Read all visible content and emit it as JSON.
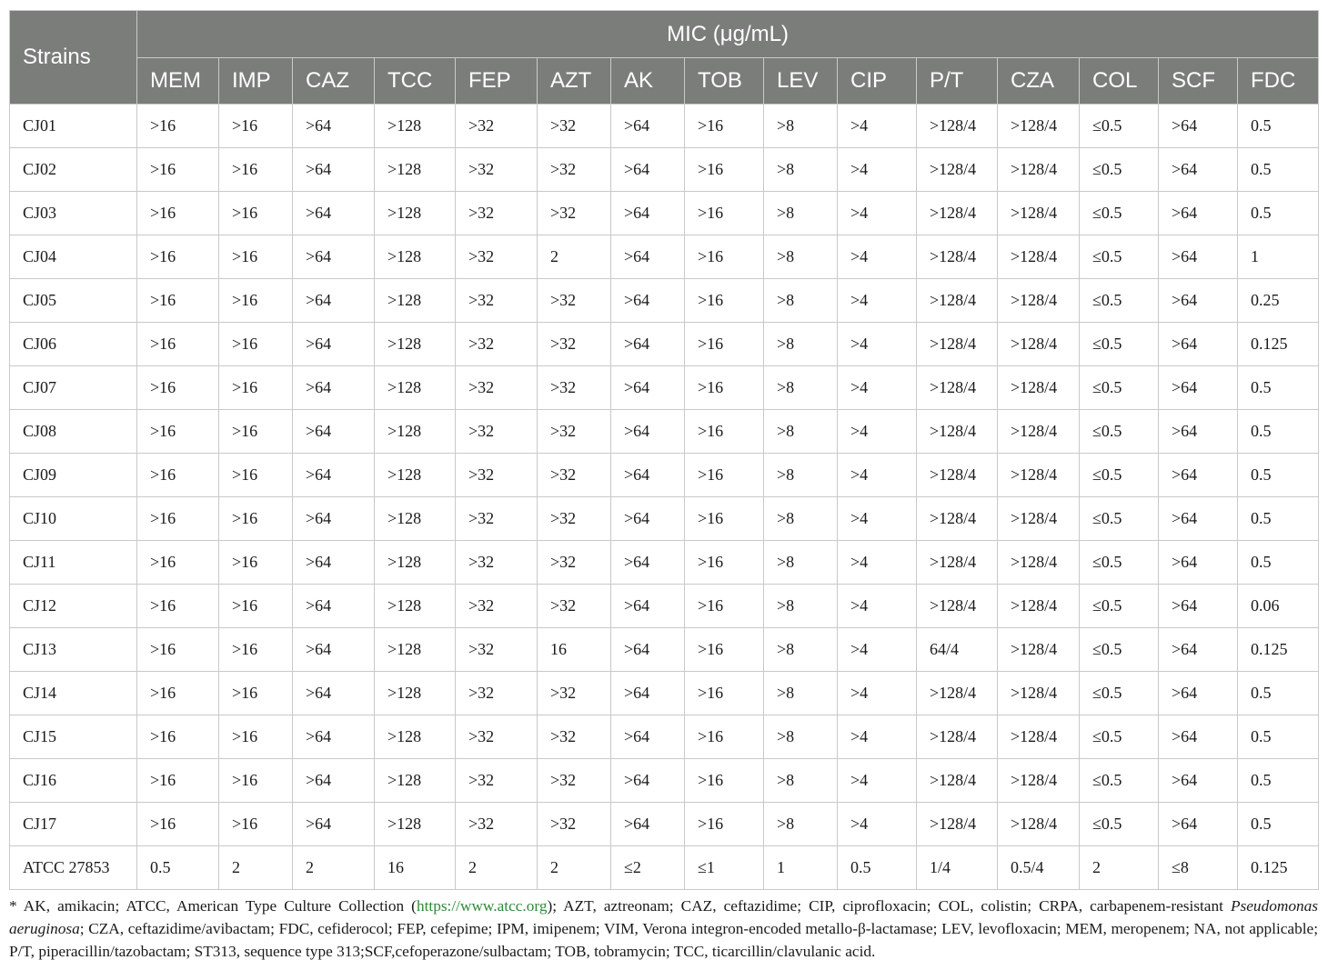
{
  "table": {
    "strains_header": "Strains",
    "mic_header": "MIC (μg/mL)",
    "columns": [
      "MEM",
      "IMP",
      "CAZ",
      "TCC",
      "FEP",
      "AZT",
      "AK",
      "TOB",
      "LEV",
      "CIP",
      "P/T",
      "CZA",
      "COL",
      "SCF",
      "FDC"
    ],
    "rows": [
      {
        "strain": "CJ01",
        "values": [
          ">16",
          ">16",
          ">64",
          ">128",
          ">32",
          ">32",
          ">64",
          ">16",
          ">8",
          ">4",
          ">128/4",
          ">128/4",
          "≤0.5",
          ">64",
          "0.5"
        ]
      },
      {
        "strain": "CJ02",
        "values": [
          ">16",
          ">16",
          ">64",
          ">128",
          ">32",
          ">32",
          ">64",
          ">16",
          ">8",
          ">4",
          ">128/4",
          ">128/4",
          "≤0.5",
          ">64",
          "0.5"
        ]
      },
      {
        "strain": "CJ03",
        "values": [
          ">16",
          ">16",
          ">64",
          ">128",
          ">32",
          ">32",
          ">64",
          ">16",
          ">8",
          ">4",
          ">128/4",
          ">128/4",
          "≤0.5",
          ">64",
          "0.5"
        ]
      },
      {
        "strain": "CJ04",
        "values": [
          ">16",
          ">16",
          ">64",
          ">128",
          ">32",
          "2",
          ">64",
          ">16",
          ">8",
          ">4",
          ">128/4",
          ">128/4",
          "≤0.5",
          ">64",
          "1"
        ]
      },
      {
        "strain": "CJ05",
        "values": [
          ">16",
          ">16",
          ">64",
          ">128",
          ">32",
          ">32",
          ">64",
          ">16",
          ">8",
          ">4",
          ">128/4",
          ">128/4",
          "≤0.5",
          ">64",
          "0.25"
        ]
      },
      {
        "strain": "CJ06",
        "values": [
          ">16",
          ">16",
          ">64",
          ">128",
          ">32",
          ">32",
          ">64",
          ">16",
          ">8",
          ">4",
          ">128/4",
          ">128/4",
          "≤0.5",
          ">64",
          "0.125"
        ]
      },
      {
        "strain": "CJ07",
        "values": [
          ">16",
          ">16",
          ">64",
          ">128",
          ">32",
          ">32",
          ">64",
          ">16",
          ">8",
          ">4",
          ">128/4",
          ">128/4",
          "≤0.5",
          ">64",
          "0.5"
        ]
      },
      {
        "strain": "CJ08",
        "values": [
          ">16",
          ">16",
          ">64",
          ">128",
          ">32",
          ">32",
          ">64",
          ">16",
          ">8",
          ">4",
          ">128/4",
          ">128/4",
          "≤0.5",
          ">64",
          "0.5"
        ]
      },
      {
        "strain": "CJ09",
        "values": [
          ">16",
          ">16",
          ">64",
          ">128",
          ">32",
          ">32",
          ">64",
          ">16",
          ">8",
          ">4",
          ">128/4",
          ">128/4",
          "≤0.5",
          ">64",
          "0.5"
        ]
      },
      {
        "strain": "CJ10",
        "values": [
          ">16",
          ">16",
          ">64",
          ">128",
          ">32",
          ">32",
          ">64",
          ">16",
          ">8",
          ">4",
          ">128/4",
          ">128/4",
          "≤0.5",
          ">64",
          "0.5"
        ]
      },
      {
        "strain": "CJ11",
        "values": [
          ">16",
          ">16",
          ">64",
          ">128",
          ">32",
          ">32",
          ">64",
          ">16",
          ">8",
          ">4",
          ">128/4",
          ">128/4",
          "≤0.5",
          ">64",
          "0.5"
        ]
      },
      {
        "strain": "CJ12",
        "values": [
          ">16",
          ">16",
          ">64",
          ">128",
          ">32",
          ">32",
          ">64",
          ">16",
          ">8",
          ">4",
          ">128/4",
          ">128/4",
          "≤0.5",
          ">64",
          "0.06"
        ]
      },
      {
        "strain": "CJ13",
        "values": [
          ">16",
          ">16",
          ">64",
          ">128",
          ">32",
          "16",
          ">64",
          ">16",
          ">8",
          ">4",
          "64/4",
          ">128/4",
          "≤0.5",
          ">64",
          "0.125"
        ]
      },
      {
        "strain": "CJ14",
        "values": [
          ">16",
          ">16",
          ">64",
          ">128",
          ">32",
          ">32",
          ">64",
          ">16",
          ">8",
          ">4",
          ">128/4",
          ">128/4",
          "≤0.5",
          ">64",
          "0.5"
        ]
      },
      {
        "strain": "CJ15",
        "values": [
          ">16",
          ">16",
          ">64",
          ">128",
          ">32",
          ">32",
          ">64",
          ">16",
          ">8",
          ">4",
          ">128/4",
          ">128/4",
          "≤0.5",
          ">64",
          "0.5"
        ]
      },
      {
        "strain": "CJ16",
        "values": [
          ">16",
          ">16",
          ">64",
          ">128",
          ">32",
          ">32",
          ">64",
          ">16",
          ">8",
          ">4",
          ">128/4",
          ">128/4",
          "≤0.5",
          ">64",
          "0.5"
        ]
      },
      {
        "strain": "CJ17",
        "values": [
          ">16",
          ">16",
          ">64",
          ">128",
          ">32",
          ">32",
          ">64",
          ">16",
          ">8",
          ">4",
          ">128/4",
          ">128/4",
          "≤0.5",
          ">64",
          "0.5"
        ]
      },
      {
        "strain": "ATCC 27853",
        "values": [
          "0.5",
          "2",
          "2",
          "16",
          "2",
          "2",
          "≤2",
          "≤1",
          "1",
          "0.5",
          "1/4",
          "0.5/4",
          "2",
          "≤8",
          "0.125"
        ]
      }
    ]
  },
  "footnote": {
    "part1": "* AK, amikacin; ATCC, American Type Culture Collection (",
    "link": "https://www.atcc.org",
    "part2": "); AZT, aztreonam; CAZ, ceftazidime; CIP, ciprofloxacin; COL, colistin; CRPA, carbapenem-resistant ",
    "italic": "Pseudomonas aeruginosa",
    "part3": "; CZA, ceftazidime/avibactam; FDC, cefiderocol; FEP, cefepime; IPM, imipenem; VIM, Verona integron-encoded metallo-β-lactamase; LEV, levofloxacin; MEM, meropenem; NA, not applicable; P/T, piperacillin/tazobactam; ST313, sequence type 313;SCF,cefoperazone/sulbactam; TOB, tobramycin; TCC, ticarcillin/clavulanic acid."
  },
  "colors": {
    "header_background": "#7b7d7b",
    "header_text": "#ffffff",
    "grid_lines": "#c9c9c9",
    "link": "#2e8b3a"
  }
}
